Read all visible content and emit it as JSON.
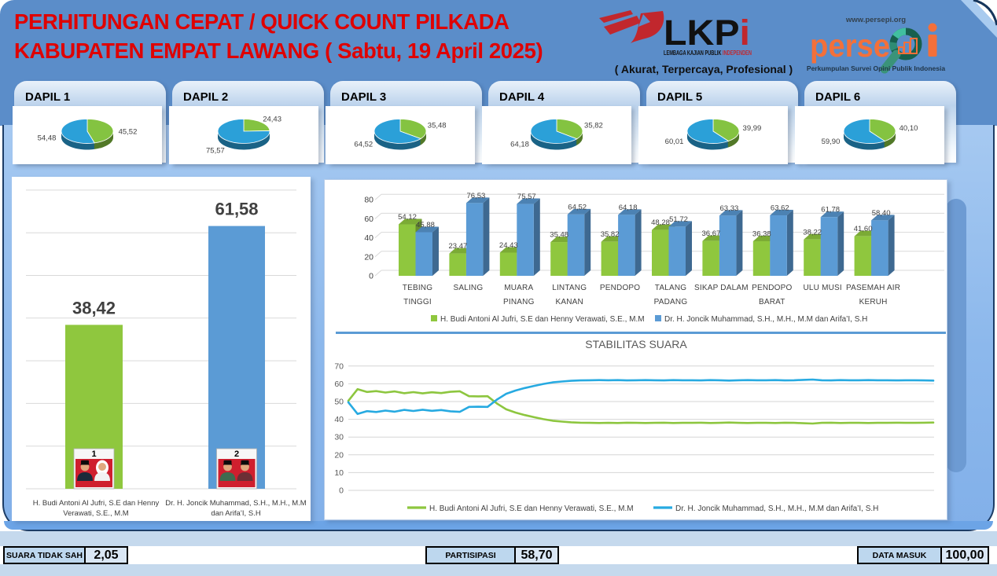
{
  "header": {
    "title_line1": "PERHITUNGAN CEPAT / QUICK COUNT PILKADA",
    "title_line2": "KABUPATEN EMPAT LAWANG ( Sabtu, 19 April 2025)",
    "title_color": "#df0202",
    "lkpi": {
      "wordmark": "LKP",
      "wordmark_i": "i",
      "subtitle_black": "LEMBAGA KAJIAN PUBLIK ",
      "subtitle_red": "INDEPENDEN",
      "tagline": "( Akurat, Terpercaya, Profesional )"
    },
    "persepi": {
      "url": "www.persepi.org",
      "wordmark_left": "perse",
      "wordmark_right": "i",
      "subtitle": "Perkumpulan Survei Opini Publik Indonesia"
    }
  },
  "candidates": [
    {
      "number": "1",
      "name": "H. Budi Antoni Al Jufri, S.E dan Henny Verawati, S.E., M.M",
      "name_lines": [
        "H. Budi Antoni Al Jufri, S.E dan Henny",
        "Verawati, S.E., M.M"
      ],
      "color": "#8cc63f"
    },
    {
      "number": "2",
      "name": "Dr. H. Joncik Muhammad, S.H., M.H., M.M dan Arifa’I, S.H",
      "name_lines": [
        "Dr. H. Joncik Muhammad, S.H., M.H., M.M",
        "dan Arifa’I, S.H"
      ],
      "color": "#2ba0d8"
    }
  ],
  "colors": {
    "pie_blue": "#2ba0d8",
    "pie_green": "#84c341",
    "bar_green": "#8fc73e",
    "bar_blue": "#5b9bd5",
    "line_green": "#8dc63f",
    "line_blue": "#27aae1",
    "grid": "#d9d9d9",
    "axis_text": "#595959",
    "value_text": "#404040"
  },
  "chart_data": [
    {
      "type": "pie",
      "name": "dapil_pies",
      "pies": [
        {
          "title": "DAPIL 1",
          "blue": 54.48,
          "green": 45.52,
          "blue_label": "54,48",
          "green_label": "45,52"
        },
        {
          "title": "DAPIL 2",
          "blue": 75.57,
          "green": 24.43,
          "blue_label": "75,57",
          "green_label": "24,43"
        },
        {
          "title": "DAPIL 3",
          "blue": 64.52,
          "green": 35.48,
          "blue_label": "64,52",
          "green_label": "35,48"
        },
        {
          "title": "DAPIL 4",
          "blue": 64.18,
          "green": 35.82,
          "blue_label": "64,18",
          "green_label": "35,82"
        },
        {
          "title": "DAPIL 5",
          "blue": 60.01,
          "green": 39.99,
          "blue_label": "60,01",
          "green_label": "39,99"
        },
        {
          "title": "DAPIL 6",
          "blue": 59.9,
          "green": 40.1,
          "blue_label": "59,90",
          "green_label": "40,10"
        }
      ]
    },
    {
      "type": "bar",
      "name": "summary_bars",
      "categories": [
        "H. Budi Antoni Al Jufri, S.E dan Henny Verawati, S.E., M.M",
        "Dr. H. Joncik Muhammad, S.H., M.H., M.M dan Arifa’I, S.H"
      ],
      "values": [
        38.42,
        61.58
      ],
      "labels": [
        "38,42",
        "61,58"
      ],
      "ylim": [
        0,
        70
      ],
      "grid_step": 10,
      "title": "",
      "xlabel": "",
      "ylabel": ""
    },
    {
      "type": "bar",
      "name": "kecamatan_bars",
      "style": "3d-grouped",
      "categories": [
        "TEBING TINGGI",
        "SALING",
        "MUARA PINANG",
        "LINTANG KANAN",
        "PENDOPO",
        "TALANG PADANG",
        "SIKAP DALAM",
        "PENDOPO BARAT",
        "ULU MUSI",
        "PASEMAH AIR KERUH"
      ],
      "category_lines": [
        [
          "TEBING",
          "TINGGI"
        ],
        [
          "SALING"
        ],
        [
          "MUARA",
          "PINANG"
        ],
        [
          "LINTANG",
          "KANAN"
        ],
        [
          "PENDOPO"
        ],
        [
          "TALANG",
          "PADANG"
        ],
        [
          "SIKAP DALAM"
        ],
        [
          "PENDOPO",
          "BARAT"
        ],
        [
          "ULU MUSI"
        ],
        [
          "PASEMAH AIR",
          "KERUH"
        ]
      ],
      "series": [
        {
          "name": "H. Budi Antoni Al Jufri, S.E dan Henny Verawati, S.E., M.M",
          "values": [
            54.12,
            23.47,
            24.43,
            35.48,
            35.82,
            48.28,
            36.67,
            36.38,
            38.22,
            41.6
          ],
          "labels": [
            "54,12",
            "23,47",
            "24,43",
            "35,48",
            "35,82",
            "48,28",
            "36,67",
            "36,38",
            "38,22",
            "41,60"
          ]
        },
        {
          "name": "Dr. H. Joncik Muhammad, S.H., M.H., M.M dan Arifa’I, S.H",
          "values": [
            45.88,
            76.53,
            75.57,
            64.52,
            64.18,
            51.72,
            63.33,
            63.62,
            61.78,
            58.4
          ],
          "labels": [
            "45,88",
            "76,53",
            "75,57",
            "64,52",
            "64,18",
            "51,72",
            "63,33",
            "63,62",
            "61,78",
            "58,40"
          ]
        }
      ],
      "yticks": [
        0,
        20,
        40,
        60,
        80
      ],
      "ylim": [
        0,
        80
      ],
      "legend_position": "bottom"
    },
    {
      "type": "line",
      "name": "stability_lines",
      "title": "STABILITAS SUARA",
      "yticks": [
        0,
        10,
        20,
        30,
        40,
        50,
        60,
        70
      ],
      "ylim": [
        0,
        70
      ],
      "series": [
        {
          "name": "H. Budi Antoni Al Jufri, S.E dan Henny Verawati, S.E., M.M",
          "values": [
            50.4,
            57.0,
            55.4,
            55.9,
            55.1,
            55.7,
            54.7,
            55.3,
            54.6,
            55.2,
            54.8,
            55.5,
            55.8,
            53.0,
            52.9,
            53.0,
            48.9,
            45.6,
            43.8,
            42.4,
            41.2,
            40.1,
            39.2,
            38.7,
            38.3,
            38.1,
            38.0,
            37.9,
            38.0,
            37.9,
            38.1,
            38.0,
            37.9,
            38.0,
            38.1,
            37.9,
            38.0,
            38.0,
            38.1,
            37.9,
            38.0,
            38.2,
            38.0,
            37.9,
            38.0,
            38.0,
            37.9,
            38.1,
            38.0,
            37.8,
            37.6,
            38.0,
            38.1,
            37.9,
            38.0,
            38.0,
            37.9,
            38.0,
            38.0,
            38.1,
            38.0,
            38.0,
            38.1,
            38.2
          ]
        },
        {
          "name": "Dr. H. Joncik Muhammad, S.H., M.H., M.M dan Arifa’I, S.H",
          "values": [
            49.6,
            43.0,
            44.6,
            44.1,
            44.9,
            44.3,
            45.3,
            44.7,
            45.4,
            44.8,
            45.2,
            44.5,
            44.2,
            47.0,
            47.1,
            47.0,
            51.1,
            54.4,
            56.2,
            57.6,
            58.8,
            59.9,
            60.8,
            61.3,
            61.7,
            61.9,
            62.0,
            62.1,
            62.0,
            62.1,
            61.9,
            62.0,
            62.1,
            62.0,
            61.9,
            62.1,
            62.0,
            62.0,
            61.9,
            62.1,
            62.0,
            61.8,
            62.0,
            62.1,
            62.0,
            62.0,
            62.1,
            61.9,
            62.0,
            62.2,
            62.4,
            62.0,
            61.9,
            62.1,
            62.0,
            62.0,
            62.1,
            62.0,
            62.0,
            61.9,
            62.0,
            62.0,
            61.9,
            61.8
          ]
        }
      ],
      "legend_position": "bottom"
    }
  ],
  "footer": {
    "items": [
      {
        "label": "SUARA TIDAK SAH",
        "value": "2,05"
      },
      {
        "label": "PARTISIPASI",
        "value": "58,70"
      },
      {
        "label": "DATA MASUK",
        "value": "100,00"
      }
    ]
  }
}
